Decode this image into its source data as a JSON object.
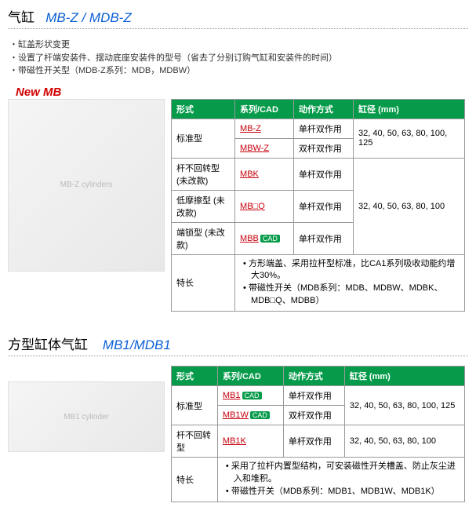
{
  "section1": {
    "title_main": "气缸",
    "title_model": "MB-Z / MDB-Z",
    "bullets": [
      "缸盖形状变更",
      "设置了杆端安装件、摆动底座安装件的型号（省去了分别订购气缸和安装件的时间）",
      "带磁性开关型（MDB-Z系列：MDB，MDBW）"
    ],
    "new_label": "New MB",
    "img_alt": "MB-Z cylinders",
    "head": {
      "c1": "形式",
      "c2": "系列/CAD",
      "c3": "动作方式",
      "c4": "缸径 (mm)"
    },
    "rows": {
      "std_label": "标准型",
      "mbz": "MB-Z",
      "mbz_act": "单杆双作用",
      "mbwz": "MBW-Z",
      "mbwz_act": "双杆双作用",
      "std_bore": "32, 40, 50, 63, 80, 100, 125",
      "nonrot_label": "杆不回转型 (未改款)",
      "mbk": "MBK",
      "mbk_act": "单杆双作用",
      "lowfric_label": "低摩擦型 (未改款)",
      "mbq": "MB□Q",
      "mbq_act": "单杆双作用",
      "endlock_label": "端锁型 (未改款)",
      "mbb": "MBB",
      "mbb_act": "单杆双作用",
      "group_bore": "32, 40, 50, 63, 80, 100",
      "feat_label": "特长",
      "feat1": "方形端盖、采用拉杆型标准，比CA1系列吸收动能约增大30%。",
      "feat2": "带磁性开关（MDB系列：MDB、MDBW、MDBK、MDB□Q、MDBB）"
    }
  },
  "section2": {
    "title_main": "方型缸体气缸",
    "title_model": "MB1/MDB1",
    "img_alt": "MB1 cylinder",
    "head": {
      "c1": "形式",
      "c2": "系列/CAD",
      "c3": "动作方式",
      "c4": "缸径 (mm)"
    },
    "rows": {
      "std_label": "标准型",
      "mb1": "MB1",
      "mb1_act": "单杆双作用",
      "mb1w": "MB1W",
      "mb1w_act": "双杆双作用",
      "std_bore": "32, 40, 50, 63, 80, 100, 125",
      "nonrot_label": "杆不回转型",
      "mb1k": "MB1K",
      "mb1k_act": "单杆双作用",
      "nonrot_bore": "32, 40, 50, 63, 80, 100",
      "feat_label": "特长",
      "feat1": "采用了拉杆内置型结构，可安装磁性开关槽盖、防止灰尘进入和堆积。",
      "feat2": "带磁性开关（MDB系列：MDB1、MDB1W、MDB1K）"
    }
  },
  "cad_text": "CAD"
}
